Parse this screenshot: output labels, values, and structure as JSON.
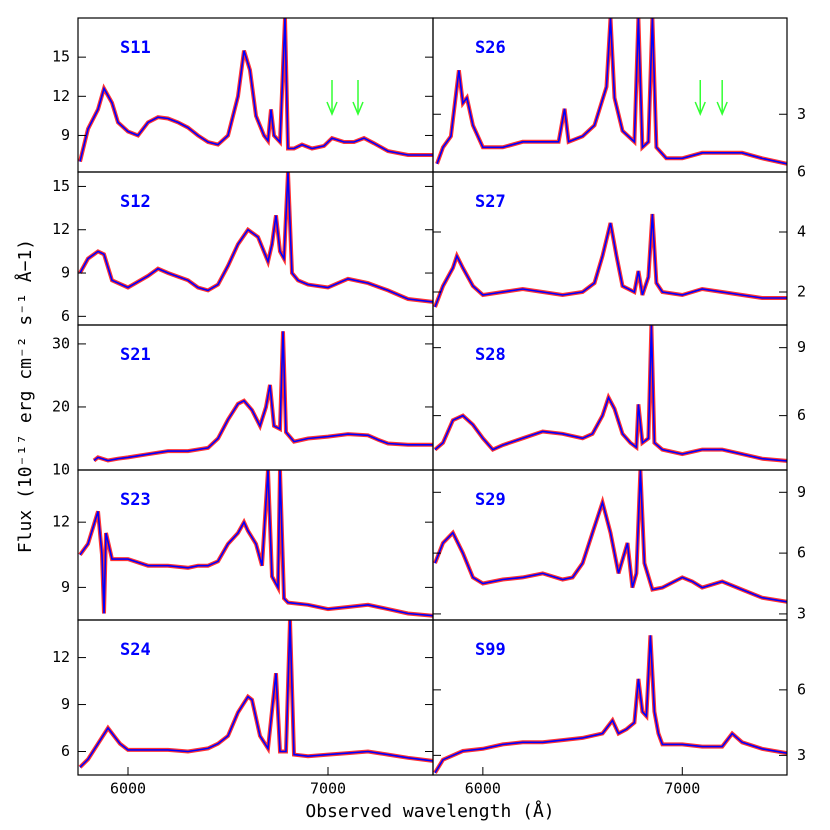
{
  "xlabel": "Observed wavelength (Å)",
  "ylabel": "Flux (10⁻¹⁷ erg cm⁻² s⁻¹ Å−1)",
  "chart_data": [
    {
      "type": "line",
      "title": "S11",
      "yaxis": "left",
      "color": "#0000ff",
      "error_color": "#ff0000",
      "xlim": [
        5750,
        7525
      ],
      "ylim": [
        6.2,
        18
      ],
      "yticks": [
        9,
        12,
        15
      ],
      "arrows": [
        7020,
        7150
      ],
      "arrow_color": "#33ff33",
      "x": [
        5760,
        5800,
        5850,
        5880,
        5920,
        5950,
        6000,
        6050,
        6100,
        6150,
        6200,
        6250,
        6300,
        6350,
        6400,
        6450,
        6500,
        6550,
        6580,
        6610,
        6640,
        6680,
        6700,
        6715,
        6730,
        6760,
        6785,
        6800,
        6830,
        6870,
        6920,
        6980,
        7020,
        7080,
        7130,
        7180,
        7230,
        7300,
        7400,
        7500,
        7525
      ],
      "values": [
        7,
        9.5,
        11,
        12.6,
        11.5,
        10,
        9.3,
        9,
        10,
        10.4,
        10.3,
        10,
        9.6,
        9,
        8.5,
        8.3,
        9,
        12,
        15.5,
        14,
        10.5,
        9,
        8.6,
        11,
        9,
        8.5,
        18,
        8,
        8,
        8.3,
        8,
        8.2,
        8.8,
        8.5,
        8.5,
        8.8,
        8.4,
        7.8,
        7.5,
        7.5,
        7.5
      ]
    },
    {
      "type": "line",
      "title": "S26",
      "yaxis": "right",
      "color": "#0000ff",
      "error_color": "#ff0000",
      "xlim": [
        5750,
        7525
      ],
      "ylim": [
        1.95,
        4.75
      ],
      "yticks": [
        3
      ],
      "arrows": [
        7090,
        7200
      ],
      "arrow_color": "#33ff33",
      "x": [
        5770,
        5800,
        5840,
        5880,
        5900,
        5920,
        5950,
        6000,
        6100,
        6200,
        6300,
        6380,
        6410,
        6430,
        6500,
        6560,
        6620,
        6640,
        6660,
        6700,
        6760,
        6780,
        6800,
        6830,
        6850,
        6870,
        6920,
        7000,
        7100,
        7200,
        7300,
        7400,
        7525
      ],
      "values": [
        2.1,
        2.4,
        2.6,
        3.8,
        3.2,
        3.3,
        2.8,
        2.4,
        2.4,
        2.5,
        2.5,
        2.5,
        3.1,
        2.5,
        2.6,
        2.8,
        3.5,
        4.75,
        3.3,
        2.7,
        2.5,
        4.75,
        2.4,
        2.5,
        4.75,
        2.4,
        2.2,
        2.2,
        2.3,
        2.3,
        2.3,
        2.2,
        2.1
      ]
    },
    {
      "type": "line",
      "title": "S12",
      "yaxis": "left",
      "color": "#0000ff",
      "error_color": "#ff0000",
      "xlim": [
        5750,
        7525
      ],
      "ylim": [
        5.4,
        16
      ],
      "yticks": [
        6,
        9,
        12,
        15
      ],
      "x": [
        5760,
        5800,
        5850,
        5880,
        5920,
        6000,
        6100,
        6150,
        6200,
        6300,
        6350,
        6400,
        6450,
        6500,
        6550,
        6600,
        6650,
        6700,
        6720,
        6740,
        6760,
        6780,
        6800,
        6820,
        6850,
        6900,
        7000,
        7100,
        7200,
        7300,
        7400,
        7525
      ],
      "values": [
        9,
        10,
        10.5,
        10.3,
        8.5,
        8,
        8.8,
        9.3,
        9,
        8.5,
        8,
        7.8,
        8.2,
        9.5,
        11,
        12,
        11.5,
        9.8,
        11,
        13,
        10.5,
        10,
        16,
        9,
        8.5,
        8.2,
        8,
        8.6,
        8.3,
        7.8,
        7.2,
        7
      ]
    },
    {
      "type": "line",
      "title": "S27",
      "yaxis": "right",
      "color": "#0000ff",
      "error_color": "#ff0000",
      "xlim": [
        5750,
        7525
      ],
      "ylim": [
        0.9,
        6
      ],
      "yticks": [
        2,
        4,
        6
      ],
      "x": [
        5760,
        5800,
        5850,
        5870,
        5900,
        5950,
        6000,
        6100,
        6200,
        6300,
        6400,
        6500,
        6560,
        6600,
        6640,
        6670,
        6700,
        6760,
        6780,
        6800,
        6830,
        6850,
        6870,
        6900,
        7000,
        7100,
        7200,
        7300,
        7400,
        7525
      ],
      "values": [
        1.5,
        2.2,
        2.8,
        3.2,
        2.8,
        2.2,
        1.9,
        2,
        2.1,
        2,
        1.9,
        2,
        2.3,
        3.2,
        4.3,
        3.2,
        2.2,
        2,
        2.7,
        1.9,
        2.5,
        4.6,
        2.3,
        2,
        1.9,
        2.1,
        2,
        1.9,
        1.8,
        1.8
      ]
    },
    {
      "type": "line",
      "title": "S21",
      "yaxis": "left",
      "color": "#0000ff",
      "error_color": "#ff0000",
      "xlim": [
        5750,
        7525
      ],
      "ylim": [
        10,
        33
      ],
      "yticks": [
        10,
        20,
        30
      ],
      "x": [
        5830,
        5850,
        5900,
        5950,
        6000,
        6100,
        6200,
        6300,
        6400,
        6450,
        6500,
        6550,
        6580,
        6620,
        6660,
        6690,
        6710,
        6730,
        6760,
        6775,
        6790,
        6830,
        6900,
        7000,
        7100,
        7200,
        7250,
        7300,
        7400,
        7525
      ],
      "values": [
        11.5,
        12,
        11.5,
        11.8,
        12,
        12.5,
        13,
        13,
        13.5,
        15,
        18,
        20.5,
        21,
        19.5,
        17,
        20,
        23.5,
        17,
        16.5,
        32,
        16,
        14.5,
        15,
        15.3,
        15.7,
        15.5,
        14.8,
        14.2,
        14,
        14
      ]
    },
    {
      "type": "line",
      "title": "S28",
      "yaxis": "right",
      "color": "#0000ff",
      "error_color": "#ff0000",
      "xlim": [
        5750,
        7525
      ],
      "ylim": [
        3.6,
        10
      ],
      "yticks": [
        6,
        9
      ],
      "x": [
        5760,
        5800,
        5850,
        5900,
        5950,
        6000,
        6050,
        6100,
        6200,
        6300,
        6400,
        6500,
        6550,
        6600,
        6630,
        6660,
        6700,
        6740,
        6770,
        6780,
        6800,
        6830,
        6845,
        6860,
        6900,
        7000,
        7100,
        7200,
        7300,
        7400,
        7525
      ],
      "values": [
        4.5,
        4.8,
        5.8,
        6,
        5.6,
        5,
        4.5,
        4.7,
        5,
        5.3,
        5.2,
        5,
        5.2,
        6,
        6.8,
        6.3,
        5.2,
        4.8,
        4.6,
        6.5,
        4.8,
        5,
        10,
        4.8,
        4.5,
        4.3,
        4.5,
        4.5,
        4.3,
        4.1,
        4
      ]
    },
    {
      "type": "line",
      "title": "S23",
      "yaxis": "left",
      "color": "#0000ff",
      "error_color": "#ff0000",
      "xlim": [
        5750,
        7525
      ],
      "ylim": [
        7.5,
        14.4
      ],
      "yticks": [
        9,
        12
      ],
      "x": [
        5760,
        5800,
        5850,
        5870,
        5880,
        5890,
        5920,
        6000,
        6100,
        6200,
        6300,
        6350,
        6400,
        6450,
        6500,
        6550,
        6580,
        6600,
        6640,
        6670,
        6700,
        6720,
        6750,
        6760,
        6780,
        6800,
        6900,
        7000,
        7100,
        7200,
        7300,
        7400,
        7525
      ],
      "values": [
        10.5,
        11,
        12.5,
        10.5,
        7.8,
        11.5,
        10.3,
        10.3,
        10,
        10,
        9.9,
        10,
        10,
        10.2,
        11,
        11.5,
        12,
        11.6,
        11,
        10,
        14.4,
        9.5,
        9,
        14.4,
        8.5,
        8.3,
        8.2,
        8,
        8.1,
        8.2,
        8,
        7.8,
        7.7
      ]
    },
    {
      "type": "line",
      "title": "S29",
      "yaxis": "right",
      "color": "#0000ff",
      "error_color": "#ff0000",
      "xlim": [
        5750,
        7525
      ],
      "ylim": [
        2.7,
        10.1
      ],
      "yticks": [
        3,
        6,
        9
      ],
      "x": [
        5760,
        5800,
        5850,
        5900,
        5950,
        6000,
        6100,
        6200,
        6300,
        6400,
        6450,
        6500,
        6550,
        6600,
        6640,
        6680,
        6710,
        6725,
        6750,
        6770,
        6790,
        6810,
        6850,
        6900,
        7000,
        7050,
        7100,
        7200,
        7300,
        7400,
        7525
      ],
      "values": [
        5.5,
        6.5,
        7,
        6,
        4.8,
        4.5,
        4.7,
        4.8,
        5,
        4.7,
        4.8,
        5.5,
        7,
        8.5,
        7,
        5,
        6,
        6.5,
        4.3,
        5,
        10.1,
        5.5,
        4.2,
        4.3,
        4.8,
        4.6,
        4.3,
        4.6,
        4.2,
        3.8,
        3.6
      ]
    },
    {
      "type": "line",
      "title": "S24",
      "yaxis": "left",
      "color": "#0000ff",
      "error_color": "#ff0000",
      "xlim": [
        5750,
        7525
      ],
      "ylim": [
        4.5,
        14.4
      ],
      "yticks": [
        6,
        9,
        12
      ],
      "xticks": [
        6000,
        7000
      ],
      "x": [
        5760,
        5800,
        5850,
        5900,
        5930,
        5960,
        6000,
        6100,
        6200,
        6300,
        6400,
        6450,
        6500,
        6550,
        6600,
        6620,
        6660,
        6700,
        6740,
        6760,
        6790,
        6810,
        6830,
        6900,
        7000,
        7100,
        7200,
        7300,
        7400,
        7525
      ],
      "values": [
        5,
        5.5,
        6.5,
        7.5,
        7,
        6.5,
        6.1,
        6.1,
        6.1,
        6,
        6.2,
        6.5,
        7,
        8.5,
        9.5,
        9.3,
        7,
        6.2,
        11,
        6,
        6,
        14.4,
        5.8,
        5.7,
        5.8,
        5.9,
        6,
        5.8,
        5.6,
        5.4
      ]
    },
    {
      "type": "line",
      "title": "S99",
      "yaxis": "right",
      "color": "#0000ff",
      "error_color": "#ff0000",
      "xlim": [
        5750,
        7525
      ],
      "ylim": [
        2.1,
        9.2
      ],
      "yticks": [
        3,
        6
      ],
      "xticks": [
        6000,
        7000
      ],
      "x": [
        5760,
        5800,
        5900,
        6000,
        6100,
        6200,
        6300,
        6400,
        6500,
        6600,
        6650,
        6680,
        6720,
        6760,
        6780,
        6800,
        6820,
        6840,
        6860,
        6880,
        6900,
        7000,
        7100,
        7200,
        7250,
        7300,
        7400,
        7525
      ],
      "values": [
        2.2,
        2.8,
        3.2,
        3.3,
        3.5,
        3.6,
        3.6,
        3.7,
        3.8,
        4,
        4.6,
        4,
        4.2,
        4.5,
        6.5,
        5,
        4.8,
        8.5,
        5,
        4,
        3.5,
        3.5,
        3.4,
        3.4,
        4,
        3.6,
        3.3,
        3.1
      ]
    }
  ]
}
